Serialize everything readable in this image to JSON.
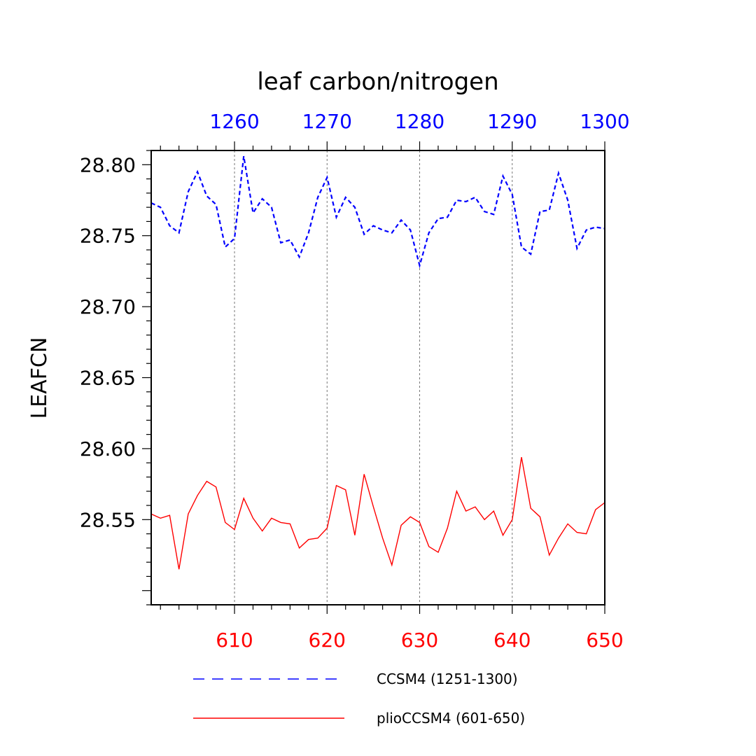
{
  "chart_data": {
    "type": "line",
    "title": "leaf carbon/nitrogen",
    "ylabel": "LEAFCN",
    "ylim": [
      28.49,
      28.81
    ],
    "yticks": [
      28.55,
      28.6,
      28.65,
      28.7,
      28.75,
      28.8
    ],
    "ytick_labels": [
      "28.55",
      "28.60",
      "28.65",
      "28.70",
      "28.75",
      "28.80"
    ],
    "grid_x": true,
    "bottom_axis": {
      "xlim": [
        601,
        650
      ],
      "ticks": [
        610,
        620,
        630,
        640,
        650
      ],
      "tick_labels": [
        "610",
        "620",
        "630",
        "640",
        "650"
      ],
      "color": "#ff0000"
    },
    "top_axis": {
      "xlim": [
        1251,
        1300
      ],
      "ticks": [
        1260,
        1270,
        1280,
        1290,
        1300
      ],
      "tick_labels": [
        "1260",
        "1270",
        "1280",
        "1290",
        "1300"
      ],
      "color": "#0000ff"
    },
    "series": [
      {
        "name": "CCSM4 (1251-1300)",
        "axis": "top",
        "color": "#0000ff",
        "dash": "dashed",
        "x": [
          1251,
          1252,
          1253,
          1254,
          1255,
          1256,
          1257,
          1258,
          1259,
          1260,
          1261,
          1262,
          1263,
          1264,
          1265,
          1266,
          1267,
          1268,
          1269,
          1270,
          1271,
          1272,
          1273,
          1274,
          1275,
          1276,
          1277,
          1278,
          1279,
          1280,
          1281,
          1282,
          1283,
          1284,
          1285,
          1286,
          1287,
          1288,
          1289,
          1290,
          1291,
          1292,
          1293,
          1294,
          1295,
          1296,
          1297,
          1298,
          1299,
          1300
        ],
        "values": [
          28.773,
          28.77,
          28.757,
          28.752,
          28.781,
          28.795,
          28.778,
          28.772,
          28.742,
          28.748,
          28.806,
          28.766,
          28.776,
          28.77,
          28.745,
          28.747,
          28.735,
          28.752,
          28.777,
          28.791,
          28.763,
          28.777,
          28.77,
          28.751,
          28.757,
          28.754,
          28.752,
          28.761,
          28.754,
          28.729,
          28.752,
          28.762,
          28.763,
          28.775,
          28.774,
          28.777,
          28.767,
          28.765,
          28.792,
          28.779,
          28.742,
          28.737,
          28.767,
          28.768,
          28.794,
          28.775,
          28.741,
          28.754,
          28.756,
          28.755
        ]
      },
      {
        "name": "plioCCSM4 (601-650)",
        "axis": "bottom",
        "color": "#ff0000",
        "dash": "solid",
        "x": [
          601,
          602,
          603,
          604,
          605,
          606,
          607,
          608,
          609,
          610,
          611,
          612,
          613,
          614,
          615,
          616,
          617,
          618,
          619,
          620,
          621,
          622,
          623,
          624,
          625,
          626,
          627,
          628,
          629,
          630,
          631,
          632,
          633,
          634,
          635,
          636,
          637,
          638,
          639,
          640,
          641,
          642,
          643,
          644,
          645,
          646,
          647,
          648,
          649,
          650
        ],
        "values": [
          28.554,
          28.551,
          28.553,
          28.515,
          28.554,
          28.567,
          28.577,
          28.573,
          28.548,
          28.543,
          28.565,
          28.551,
          28.542,
          28.551,
          28.548,
          28.547,
          28.53,
          28.536,
          28.537,
          28.544,
          28.574,
          28.571,
          28.539,
          28.582,
          28.559,
          28.537,
          28.518,
          28.546,
          28.552,
          28.548,
          28.531,
          28.527,
          28.544,
          28.57,
          28.556,
          28.559,
          28.55,
          28.556,
          28.539,
          28.55,
          28.594,
          28.558,
          28.552,
          28.525,
          28.537,
          28.547,
          28.541,
          28.54,
          28.557,
          28.562
        ]
      }
    ],
    "legend": {
      "placement": "bottom",
      "entries": [
        "CCSM4 (1251-1300)",
        "plioCCSM4 (601-650)"
      ]
    }
  }
}
